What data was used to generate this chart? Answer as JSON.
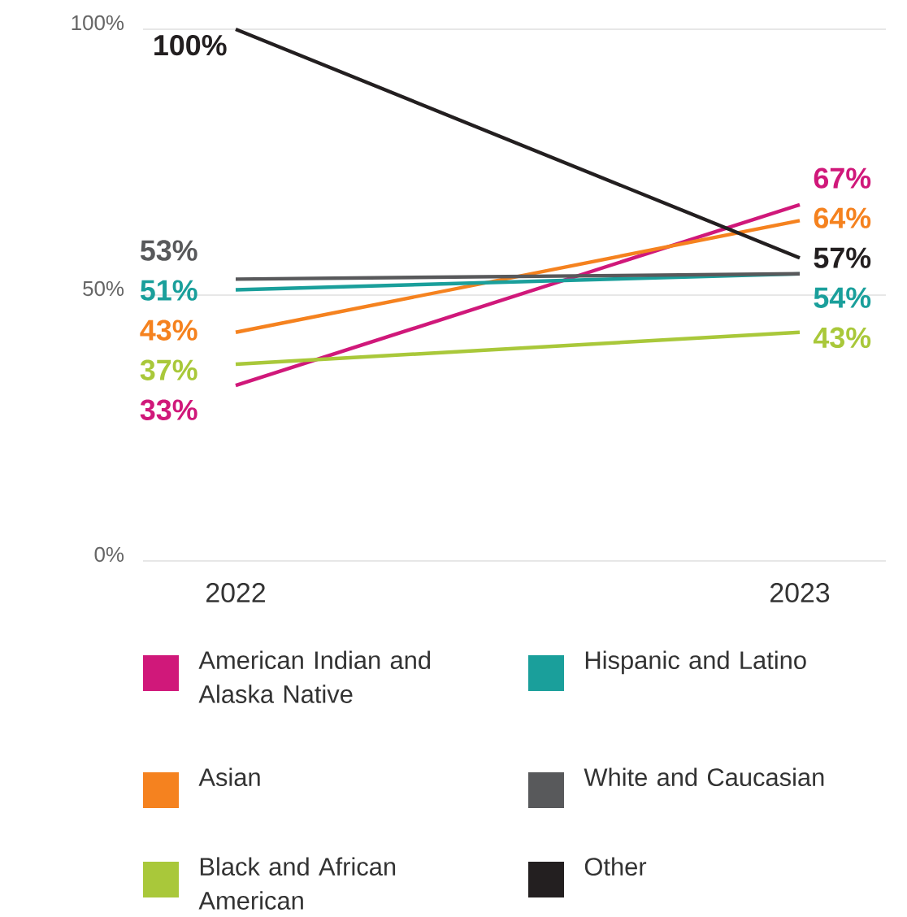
{
  "chart_data": {
    "type": "line",
    "categories": [
      "2022",
      "2023"
    ],
    "ylim": [
      0,
      100
    ],
    "yticks": [
      {
        "value": 0,
        "label": "0%"
      },
      {
        "value": 50,
        "label": "50%"
      },
      {
        "value": 100,
        "label": "100%"
      }
    ],
    "grid": "y",
    "legend": "bottom",
    "series": [
      {
        "name": "American Indian and Alaska Native",
        "color": "#d0187a",
        "values": [
          33,
          67
        ],
        "value_labels": [
          "33%",
          "67%"
        ]
      },
      {
        "name": "Asian",
        "color": "#f5821f",
        "values": [
          43,
          64
        ],
        "value_labels": [
          "43%",
          "64%"
        ]
      },
      {
        "name": "Black and African American",
        "color": "#a9c83a",
        "values": [
          37,
          43
        ],
        "value_labels": [
          "37%",
          "43%"
        ]
      },
      {
        "name": "Hispanic and Latino",
        "color": "#1a9f9b",
        "values": [
          51,
          54
        ],
        "value_labels": [
          "51%",
          "54%"
        ]
      },
      {
        "name": "White and Caucasian",
        "color": "#58595b",
        "values": [
          53,
          54
        ],
        "value_labels": [
          "53%",
          null
        ]
      },
      {
        "name": "Other",
        "color": "#231f20",
        "values": [
          100,
          57
        ],
        "value_labels": [
          "100%",
          "57%"
        ]
      }
    ]
  }
}
